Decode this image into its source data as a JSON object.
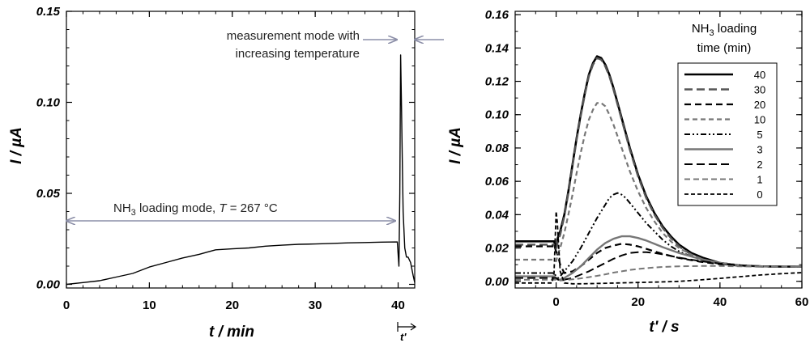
{
  "colors": {
    "black": "#000000",
    "dark_gray": "#555555",
    "gray": "#777777",
    "arrow": "#8c8fa8"
  },
  "chart_data": [
    {
      "type": "line",
      "xlabel": "t / min",
      "ylabel": "I / µA",
      "xlim": [
        0,
        42
      ],
      "ylim": [
        -0.002,
        0.15
      ],
      "xticks": [
        "0",
        "10",
        "20",
        "30",
        "40"
      ],
      "yticks": [
        "0.00",
        "0.05",
        "0.10",
        "0.15"
      ],
      "series": [
        {
          "x": [
            0,
            2,
            4,
            6,
            8,
            10,
            12,
            14,
            16,
            18,
            20,
            22,
            24,
            26,
            28,
            30,
            32,
            34,
            36,
            38,
            39.9,
            40.1,
            40.2,
            40.3,
            40.4,
            40.5,
            40.6,
            40.8,
            41.0,
            41.2,
            41.5,
            41.8,
            42
          ],
          "y": [
            0,
            0.001,
            0.002,
            0.004,
            0.006,
            0.0095,
            0.012,
            0.0145,
            0.0165,
            0.019,
            0.0195,
            0.02,
            0.021,
            0.0215,
            0.022,
            0.0222,
            0.0225,
            0.0228,
            0.023,
            0.0232,
            0.0233,
            0.01,
            0.05,
            0.126,
            0.1,
            0.07,
            0.04,
            0.02,
            0.015,
            0.015,
            0.012,
            0.005,
            0.001
          ]
        }
      ],
      "annotations": {
        "loading_prefix": "NH",
        "loading_sub": "3",
        "loading_mid": " loading mode, ",
        "loading_T": "T",
        "loading_suffix": " = 267 °C",
        "measure_line1": "measurement mode with",
        "measure_line2": "increasing temperature",
        "t_prime": "t'"
      }
    },
    {
      "type": "line",
      "xlabel": "t' / s",
      "ylabel": "I / µA",
      "xlim": [
        -10,
        60
      ],
      "ylim": [
        -0.004,
        0.162
      ],
      "xticks": [
        "0",
        "20",
        "40",
        "60"
      ],
      "yticks": [
        "0.00",
        "0.02",
        "0.04",
        "0.06",
        "0.08",
        "0.10",
        "0.12",
        "0.14",
        "0.16"
      ],
      "legend_title_prefix": "NH",
      "legend_title_sub": "3",
      "legend_title_suffix": " loading",
      "legend_title_line2": "time (min)",
      "legend_position": "top-right",
      "series": [
        {
          "name": "40",
          "color": "#000000",
          "dash": "solid",
          "width": 2.6,
          "x": [
            -10,
            -1,
            -0.5,
            0,
            0.4,
            1,
            2,
            3,
            4,
            5,
            6,
            7,
            8,
            9,
            10,
            11,
            12,
            13,
            14,
            16,
            18,
            20,
            22,
            24,
            26,
            28,
            30,
            33,
            36,
            40,
            45,
            50,
            55,
            60
          ],
          "y": [
            0.024,
            0.024,
            0.024,
            0.02,
            0.026,
            0.03,
            0.04,
            0.054,
            0.07,
            0.086,
            0.1,
            0.113,
            0.124,
            0.131,
            0.135,
            0.134,
            0.13,
            0.124,
            0.116,
            0.098,
            0.08,
            0.064,
            0.051,
            0.041,
            0.033,
            0.027,
            0.022,
            0.017,
            0.014,
            0.011,
            0.0095,
            0.009,
            0.0088,
            0.0088
          ]
        },
        {
          "name": "30",
          "color": "#555555",
          "dash": "10,5",
          "width": 2.4,
          "x": [
            -10,
            -1,
            -0.5,
            0,
            0.4,
            1,
            2,
            3,
            4,
            5,
            6,
            7,
            8,
            9,
            10,
            11,
            12,
            13,
            14,
            16,
            18,
            20,
            22,
            24,
            26,
            28,
            30,
            33,
            36,
            40,
            45,
            50,
            55,
            60
          ],
          "y": [
            0.022,
            0.022,
            0.022,
            0.018,
            0.024,
            0.028,
            0.039,
            0.053,
            0.069,
            0.085,
            0.099,
            0.112,
            0.123,
            0.13,
            0.134,
            0.133,
            0.129,
            0.123,
            0.115,
            0.097,
            0.079,
            0.063,
            0.05,
            0.04,
            0.032,
            0.026,
            0.021,
            0.016,
            0.013,
            0.0105,
            0.0092,
            0.0088,
            0.0087,
            0.0087
          ]
        },
        {
          "name": "20",
          "color": "#000000",
          "dash": "8,5",
          "width": 2.2,
          "x": [
            -10,
            -1,
            -0.5,
            0,
            0.5,
            1,
            2,
            4,
            6,
            8,
            10,
            12,
            14,
            16,
            18,
            20,
            22,
            24,
            26,
            30,
            35,
            40,
            45,
            50,
            55,
            60
          ],
          "y": [
            0.021,
            0.021,
            0.021,
            0.018,
            0.015,
            0.01,
            0.005,
            0.006,
            0.009,
            0.013,
            0.017,
            0.02,
            0.0215,
            0.0225,
            0.022,
            0.021,
            0.0195,
            0.018,
            0.0165,
            0.014,
            0.0118,
            0.0102,
            0.0095,
            0.009,
            0.0088,
            0.0088
          ]
        },
        {
          "name": "10",
          "color": "#777777",
          "dash": "6,4",
          "width": 2.2,
          "x": [
            -10,
            -1,
            -0.5,
            0,
            0.4,
            1,
            2,
            3,
            4,
            5,
            6,
            7,
            8,
            9,
            10,
            11,
            12,
            13,
            14,
            16,
            18,
            20,
            22,
            24,
            26,
            28,
            30,
            33,
            36,
            40,
            45,
            50,
            55,
            60
          ],
          "y": [
            0.013,
            0.013,
            0.013,
            0.012,
            0.016,
            0.02,
            0.029,
            0.04,
            0.052,
            0.065,
            0.077,
            0.088,
            0.097,
            0.103,
            0.107,
            0.107,
            0.105,
            0.1,
            0.094,
            0.08,
            0.066,
            0.054,
            0.044,
            0.036,
            0.029,
            0.024,
            0.02,
            0.016,
            0.013,
            0.011,
            0.0095,
            0.009,
            0.0088,
            0.0088
          ]
        },
        {
          "name": "5",
          "color": "#000000",
          "dash": "7,3,2,3,2,3",
          "width": 2.0,
          "x": [
            -10,
            -1,
            -0.5,
            0,
            0.5,
            1,
            2,
            4,
            6,
            8,
            10,
            12,
            13,
            14,
            15,
            16,
            17,
            18,
            20,
            22,
            24,
            26,
            28,
            30,
            33,
            36,
            40,
            45,
            50,
            55,
            60
          ],
          "y": [
            0.005,
            0.005,
            0.005,
            0.003,
            0.002,
            0.003,
            0.006,
            0.012,
            0.02,
            0.029,
            0.038,
            0.046,
            0.05,
            0.052,
            0.053,
            0.052,
            0.05,
            0.047,
            0.041,
            0.035,
            0.03,
            0.025,
            0.021,
            0.018,
            0.015,
            0.0125,
            0.0105,
            0.0095,
            0.009,
            0.0088,
            0.0088
          ]
        },
        {
          "name": "3",
          "color": "#777777",
          "dash": "solid",
          "width": 2.4,
          "x": [
            -10,
            -1,
            -0.5,
            0,
            0.5,
            1,
            2,
            4,
            6,
            8,
            10,
            12,
            14,
            16,
            18,
            20,
            22,
            24,
            26,
            30,
            35,
            40,
            45,
            50,
            55,
            60
          ],
          "y": [
            0.003,
            0.003,
            0.003,
            0.002,
            0.001,
            0.001,
            0.002,
            0.005,
            0.009,
            0.014,
            0.019,
            0.023,
            0.0255,
            0.027,
            0.027,
            0.026,
            0.0245,
            0.0225,
            0.0205,
            0.017,
            0.0135,
            0.011,
            0.0096,
            0.009,
            0.0088,
            0.0088
          ]
        },
        {
          "name": "2",
          "color": "#000000",
          "dash": "10,5",
          "width": 2.0,
          "x": [
            -10,
            -1,
            -0.5,
            0,
            0.5,
            1,
            2,
            4,
            6,
            8,
            10,
            12,
            14,
            16,
            18,
            20,
            22,
            24,
            26,
            28,
            30,
            35,
            40,
            45,
            50,
            55,
            60
          ],
          "y": [
            0.002,
            0.002,
            0.002,
            0.002,
            0.001,
            0.001,
            0.001,
            0.002,
            0.004,
            0.006,
            0.0085,
            0.011,
            0.0135,
            0.0155,
            0.017,
            0.0175,
            0.0175,
            0.017,
            0.0162,
            0.0152,
            0.0142,
            0.0122,
            0.0106,
            0.0096,
            0.009,
            0.0088,
            0.0088
          ]
        },
        {
          "name": "1",
          "color": "#777777",
          "dash": "7,4",
          "width": 2.0,
          "x": [
            -10,
            -1,
            -0.5,
            0,
            0.5,
            1,
            2,
            4,
            6,
            8,
            10,
            12,
            14,
            16,
            18,
            20,
            22,
            24,
            26,
            28,
            30,
            35,
            40,
            45,
            50,
            55,
            60
          ],
          "y": [
            0.001,
            0.001,
            0.001,
            0.001,
            0.0005,
            0.0005,
            0.0007,
            0.0012,
            0.0018,
            0.0025,
            0.0033,
            0.0042,
            0.0052,
            0.006,
            0.0068,
            0.0074,
            0.0079,
            0.0083,
            0.0086,
            0.0088,
            0.009,
            0.0092,
            0.0092,
            0.009,
            0.0089,
            0.0088,
            0.0088
          ]
        },
        {
          "name": "0",
          "color": "#000000",
          "dash": "5,3",
          "width": 1.8,
          "x": [
            -10,
            -1,
            -0.5,
            0,
            0.3,
            0.6,
            1,
            2,
            4,
            6,
            8,
            10,
            15,
            20,
            25,
            30,
            35,
            40,
            45,
            50,
            55,
            60
          ],
          "y": [
            -0.001,
            -0.001,
            0.005,
            0.042,
            0.035,
            0.022,
            0.006,
            -0.001,
            -0.0015,
            -0.0015,
            -0.0014,
            -0.0013,
            -0.001,
            -0.0007,
            -0.0004,
            0.0,
            0.0008,
            0.0018,
            0.0028,
            0.0038,
            0.0046,
            0.0052
          ]
        }
      ]
    }
  ]
}
